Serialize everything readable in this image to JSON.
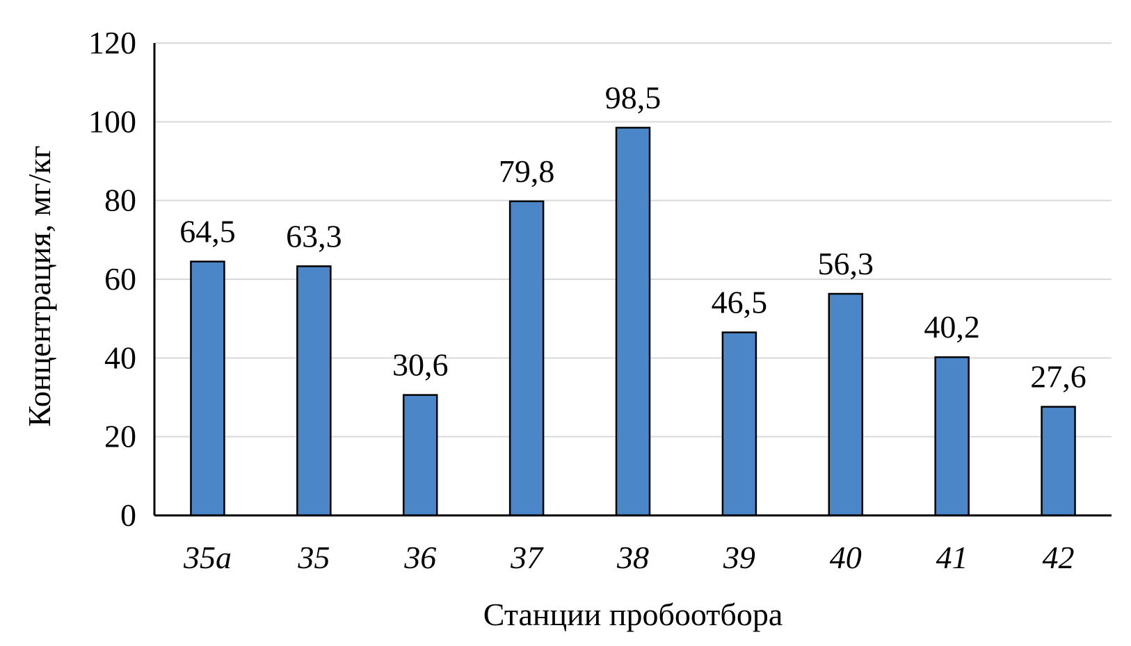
{
  "chart_data": {
    "type": "bar",
    "title": "",
    "xlabel": "Станции пробоотбора",
    "ylabel": "Концентрация, мг/кг",
    "categories": [
      "35a",
      "35",
      "36",
      "37",
      "38",
      "39",
      "40",
      "41",
      "42"
    ],
    "values": [
      64.5,
      63.3,
      30.6,
      79.8,
      98.5,
      46.5,
      56.3,
      40.2,
      27.6
    ],
    "data_labels": [
      "64,5",
      "63,3",
      "30,6",
      "79,8",
      "98,5",
      "46,5",
      "56,3",
      "40,2",
      "27,6"
    ],
    "ylim": [
      0,
      120
    ],
    "yticks": [
      0,
      20,
      40,
      60,
      80,
      100,
      120
    ],
    "grid": true,
    "bar_color": "#4a86c8",
    "bar_edge_color": "#000000",
    "grid_color": "#d9d9d9"
  }
}
